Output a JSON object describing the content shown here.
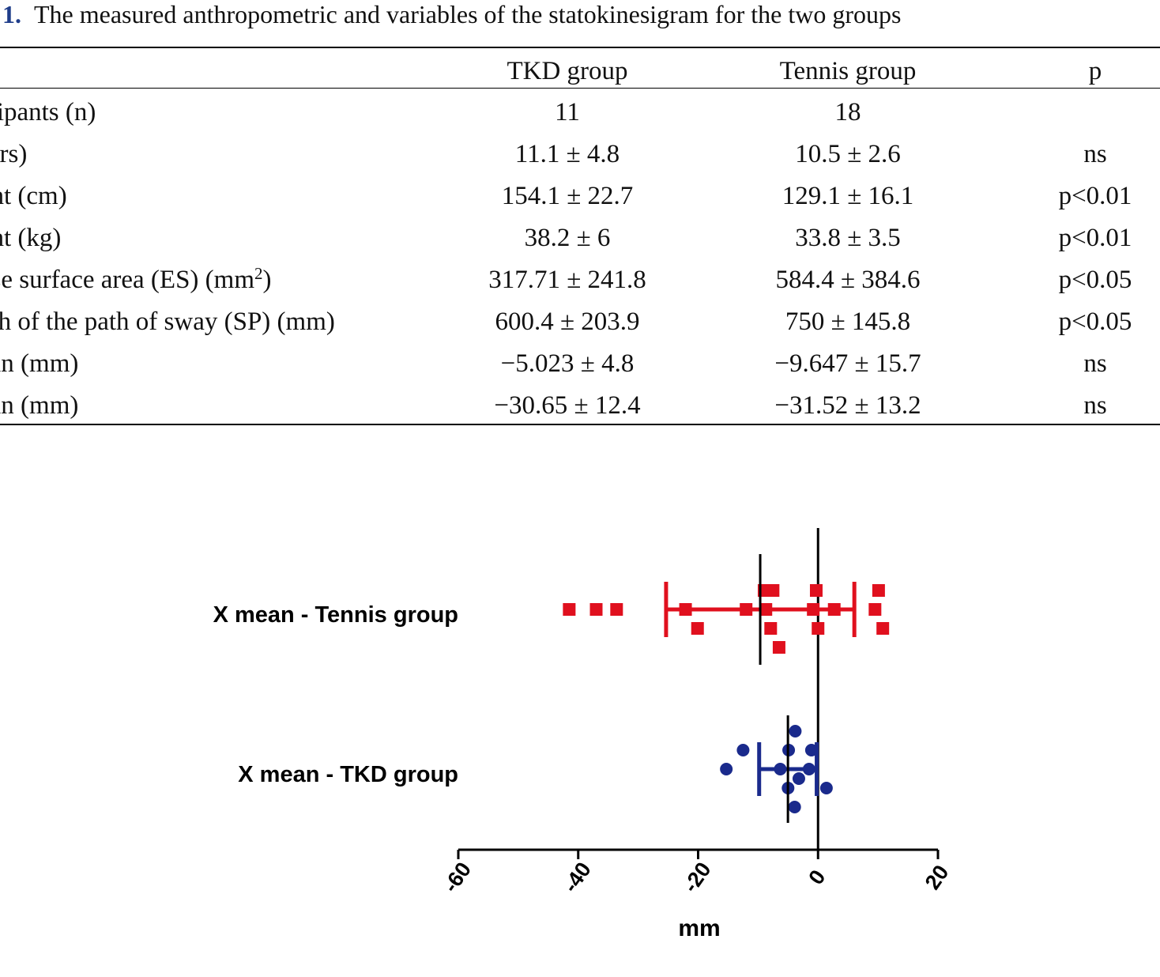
{
  "table": {
    "caption_number": "1.",
    "caption_text": "The measured anthropometric and variables of the statokinesigram for the two groups",
    "headers": {
      "label": "",
      "tkd": "TKD group",
      "tennis": "Tennis group",
      "p": "p"
    },
    "rows": [
      {
        "label": "icipants (n)",
        "tkd": "11",
        "tennis": "18",
        "p": ""
      },
      {
        "label": " (yrs)",
        "tkd": "11.1 ± 4.8",
        "tennis": "10.5 ± 2.6",
        "p": "ns"
      },
      {
        "label": "ght (cm)",
        "tkd": "154.1 ± 22.7",
        "tennis": "129.1 ± 16.1",
        "p": "p<0.01"
      },
      {
        "label": "ght (kg)",
        "tkd": "38.2 ± 6",
        "tennis": "33.8 ± 3.5",
        "p": "p<0.01"
      },
      {
        "label": "ose surface area (ES) (mm",
        "label_sup": "2",
        "label_tail": ")",
        "tkd": "317.71 ± 241.8",
        "tennis": "584.4 ± 384.6",
        "p": "p<0.05"
      },
      {
        "label": "gth of the path of sway (SP) (mm)",
        "tkd": "600.4 ± 203.9",
        "tennis": "750 ± 145.8",
        "p": "p<0.05"
      },
      {
        "label": "ean (mm)",
        "tkd": "−5.023 ± 4.8",
        "tennis": "−9.647 ± 15.7",
        "p": "ns"
      },
      {
        "label": "ean (mm)",
        "tkd": "−30.65 ± 12.4",
        "tennis": "−31.52 ± 13.2",
        "p": "ns"
      }
    ]
  },
  "chart_data": {
    "type": "scatter",
    "orientation": "horizontal",
    "xlabel": "mm",
    "xlim": [
      -60,
      20
    ],
    "xticks": [
      -60,
      -40,
      -20,
      0,
      20
    ],
    "series": [
      {
        "name": "X mean - Tennis group",
        "color": "#e0101e",
        "marker": "square",
        "points": [
          {
            "x": -41.5,
            "lane": 0
          },
          {
            "x": -37.0,
            "lane": 0
          },
          {
            "x": -33.6,
            "lane": 0
          },
          {
            "x": -22.1,
            "lane": 0
          },
          {
            "x": -12.0,
            "lane": 0
          },
          {
            "x": -8.7,
            "lane": 0
          },
          {
            "x": -0.8,
            "lane": 0
          },
          {
            "x": 2.7,
            "lane": 0
          },
          {
            "x": 9.5,
            "lane": 0
          },
          {
            "x": -9.0,
            "lane": 1
          },
          {
            "x": -7.5,
            "lane": 1
          },
          {
            "x": -0.3,
            "lane": 1
          },
          {
            "x": 10.1,
            "lane": 1
          },
          {
            "x": -20.1,
            "lane": -1
          },
          {
            "x": -7.9,
            "lane": -1
          },
          {
            "x": 0.0,
            "lane": -1
          },
          {
            "x": 10.8,
            "lane": -1
          },
          {
            "x": -6.5,
            "lane": -2
          }
        ],
        "mean": -9.647,
        "sd": 15.7
      },
      {
        "name": "X mean - TKD group",
        "color": "#1a2a8c",
        "marker": "circle",
        "points": [
          {
            "x": -3.8,
            "lane": 2
          },
          {
            "x": -12.5,
            "lane": 1
          },
          {
            "x": -4.9,
            "lane": 1
          },
          {
            "x": -1.1,
            "lane": 1
          },
          {
            "x": -15.3,
            "lane": 0
          },
          {
            "x": -6.3,
            "lane": 0
          },
          {
            "x": -1.5,
            "lane": 0
          },
          {
            "x": -3.2,
            "lane": -0.5
          },
          {
            "x": -5.0,
            "lane": -1
          },
          {
            "x": 1.4,
            "lane": -1
          },
          {
            "x": -3.9,
            "lane": -2
          }
        ],
        "mean": -5.023,
        "sd": 4.8
      }
    ]
  }
}
